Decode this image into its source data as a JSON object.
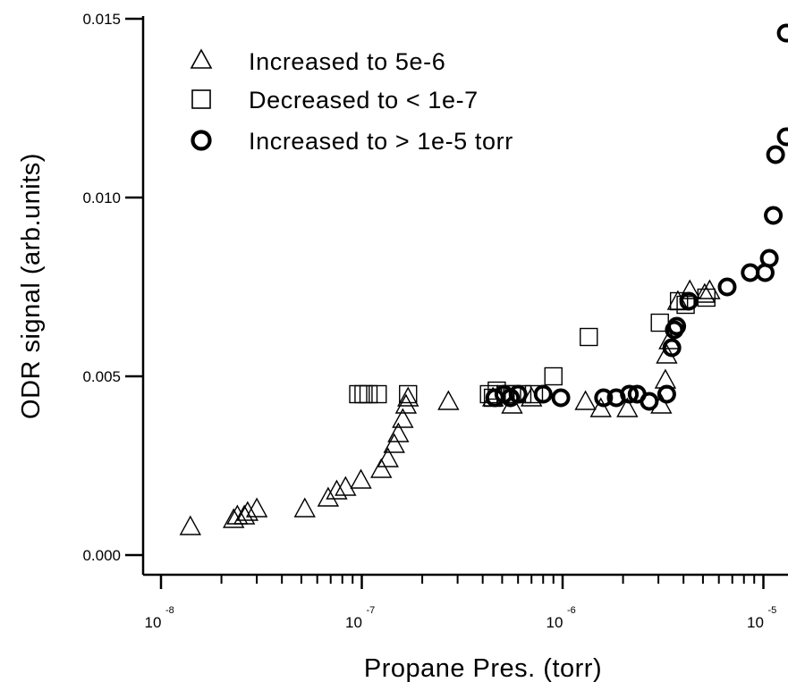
{
  "chart_data": {
    "type": "scatter",
    "x_scale": "log",
    "xlabel": "Propane Pres. (torr)",
    "ylabel": "ODR signal (arb.units)",
    "xlim": [
      1e-08,
      1.3e-05
    ],
    "ylim": [
      0.0,
      0.015
    ],
    "grid": false,
    "legend_position": "top-left",
    "x_tick_labels": [
      {
        "base": "10",
        "exp": "-8",
        "value": 1e-08
      },
      {
        "base": "10",
        "exp": "-7",
        "value": 1e-07
      },
      {
        "base": "10",
        "exp": "-6",
        "value": 1e-06
      },
      {
        "base": "10",
        "exp": "-5",
        "value": 1e-05
      }
    ],
    "y_tick_labels": [
      {
        "label": "0.000",
        "value": 0.0
      },
      {
        "label": "0.005",
        "value": 0.005
      },
      {
        "label": "0.010",
        "value": 0.01
      },
      {
        "label": "0.015",
        "value": 0.015
      }
    ],
    "series": [
      {
        "name": "Increased to 5e-6",
        "marker": "triangle",
        "points": [
          [
            1.4e-08,
            0.0008
          ],
          [
            2.3e-08,
            0.001
          ],
          [
            2.4e-08,
            0.0011
          ],
          [
            2.6e-08,
            0.0011
          ],
          [
            2.7e-08,
            0.0012
          ],
          [
            3e-08,
            0.0013
          ],
          [
            5.2e-08,
            0.0013
          ],
          [
            6.8e-08,
            0.0016
          ],
          [
            7.5e-08,
            0.0018
          ],
          [
            8.3e-08,
            0.0019
          ],
          [
            9.9e-08,
            0.0021
          ],
          [
            1.25e-07,
            0.0024
          ],
          [
            1.35e-07,
            0.0027
          ],
          [
            1.45e-07,
            0.0031
          ],
          [
            1.52e-07,
            0.0034
          ],
          [
            1.6e-07,
            0.0038
          ],
          [
            1.66e-07,
            0.0042
          ],
          [
            1.7e-07,
            0.0044
          ],
          [
            2.7e-07,
            0.0043
          ],
          [
            4.5e-07,
            0.0044
          ],
          [
            5.6e-07,
            0.0042
          ],
          [
            7e-07,
            0.0044
          ],
          [
            1.3e-06,
            0.0043
          ],
          [
            1.55e-06,
            0.0041
          ],
          [
            2.1e-06,
            0.0041
          ],
          [
            3.1e-06,
            0.0042
          ],
          [
            3.25e-06,
            0.0049
          ],
          [
            3.3e-06,
            0.0056
          ],
          [
            3.4e-06,
            0.006
          ],
          [
            3.75e-06,
            0.0071
          ],
          [
            4.3e-06,
            0.0074
          ],
          [
            5.1e-06,
            0.0073
          ],
          [
            5.4e-06,
            0.0074
          ]
        ]
      },
      {
        "name": "Decreased to < 1e-7",
        "marker": "square",
        "points": [
          [
            9.6e-08,
            0.0045
          ],
          [
            1.02e-07,
            0.0045
          ],
          [
            1.08e-07,
            0.0045
          ],
          [
            1.2e-07,
            0.0045
          ],
          [
            1.7e-07,
            0.0045
          ],
          [
            4.3e-07,
            0.0045
          ],
          [
            4.5e-07,
            0.0044
          ],
          [
            4.7e-07,
            0.0046
          ],
          [
            5.2e-07,
            0.0045
          ],
          [
            5.6e-07,
            0.0045
          ],
          [
            6.3e-07,
            0.0045
          ],
          [
            7.2e-07,
            0.0045
          ],
          [
            9e-07,
            0.005
          ],
          [
            1.35e-06,
            0.0061
          ],
          [
            3.05e-06,
            0.0065
          ],
          [
            3.8e-06,
            0.0071
          ],
          [
            4.1e-06,
            0.007
          ],
          [
            5.2e-06,
            0.0072
          ]
        ]
      },
      {
        "name": "Increased to > 1e-5 torr",
        "marker": "circle",
        "points": [
          [
            4.6e-07,
            0.0044
          ],
          [
            5.1e-07,
            0.0045
          ],
          [
            5.5e-07,
            0.0044
          ],
          [
            6e-07,
            0.0045
          ],
          [
            8e-07,
            0.0045
          ],
          [
            9.8e-07,
            0.0044
          ],
          [
            1.6e-06,
            0.0044
          ],
          [
            1.85e-06,
            0.0044
          ],
          [
            2.15e-06,
            0.0045
          ],
          [
            2.35e-06,
            0.0045
          ],
          [
            2.7e-06,
            0.0043
          ],
          [
            3.3e-06,
            0.0045
          ],
          [
            3.5e-06,
            0.0058
          ],
          [
            3.6e-06,
            0.0063
          ],
          [
            3.7e-06,
            0.0064
          ],
          [
            4.25e-06,
            0.0071
          ],
          [
            6.6e-06,
            0.0075
          ],
          [
            8.6e-06,
            0.0079
          ],
          [
            1.02e-05,
            0.0079
          ],
          [
            1.07e-05,
            0.0083
          ],
          [
            1.12e-05,
            0.0095
          ],
          [
            1.15e-05,
            0.0112
          ],
          [
            1.3e-05,
            0.0117
          ],
          [
            1.3e-05,
            0.0146
          ]
        ]
      }
    ]
  }
}
